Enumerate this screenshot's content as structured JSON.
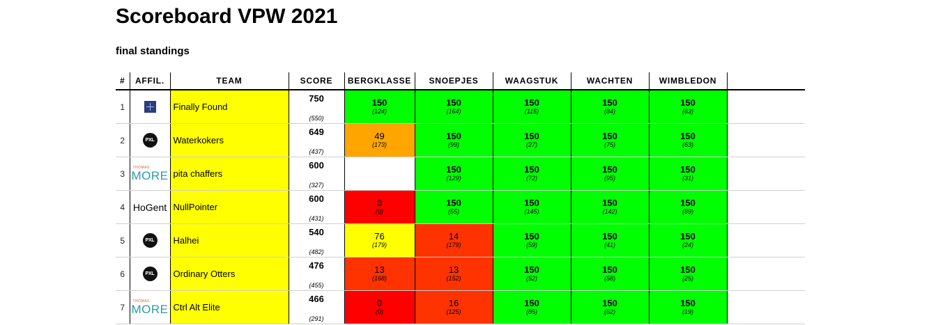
{
  "page": {
    "title": "Scoreboard VPW 2021",
    "subtitle": "final standings"
  },
  "columns": {
    "rank": "#",
    "affil": "AFFIL.",
    "team": "TEAM",
    "score": "SCORE",
    "problems": [
      "BERGKLASSE",
      "SNOEPJES",
      "WAAGSTUK",
      "WACHTEN",
      "WIMBLEDON"
    ]
  },
  "colors": {
    "team_bg": "#ffff00",
    "solved": "#00ff00",
    "partial_orange": "#ffa500",
    "partial_yellow": "#ffff00",
    "low_red_orange": "#ff3300",
    "zero_red": "#ff0000",
    "unattempted": "#ffffff"
  },
  "rows": [
    {
      "rank": "1",
      "logo": "cube-icon",
      "affil_text": "",
      "team": "Finally Found",
      "score": "750",
      "time": "(550)",
      "problems": [
        {
          "points": "150",
          "time": "(124)",
          "color": "#00ff00"
        },
        {
          "points": "150",
          "time": "(164)",
          "color": "#00ff00"
        },
        {
          "points": "150",
          "time": "(115)",
          "color": "#00ff00"
        },
        {
          "points": "150",
          "time": "(84)",
          "color": "#00ff00"
        },
        {
          "points": "150",
          "time": "(63)",
          "color": "#00ff00"
        }
      ]
    },
    {
      "rank": "2",
      "logo": "pxl-logo",
      "affil_text": "PXL",
      "team": "Waterkokers",
      "score": "649",
      "time": "(437)",
      "problems": [
        {
          "points": "49",
          "time": "(173)",
          "color": "#ffa500"
        },
        {
          "points": "150",
          "time": "(99)",
          "color": "#00ff00"
        },
        {
          "points": "150",
          "time": "(27)",
          "color": "#00ff00"
        },
        {
          "points": "150",
          "time": "(75)",
          "color": "#00ff00"
        },
        {
          "points": "150",
          "time": "(63)",
          "color": "#00ff00"
        }
      ]
    },
    {
      "rank": "3",
      "logo": "thomas-more-logo",
      "affil_text": "MORE",
      "affil_small": "THOMAS",
      "team": "pita chaffers",
      "score": "600",
      "time": "(327)",
      "problems": [
        {
          "points": "",
          "time": "",
          "color": "#ffffff"
        },
        {
          "points": "150",
          "time": "(129)",
          "color": "#00ff00"
        },
        {
          "points": "150",
          "time": "(72)",
          "color": "#00ff00"
        },
        {
          "points": "150",
          "time": "(95)",
          "color": "#00ff00"
        },
        {
          "points": "150",
          "time": "(31)",
          "color": "#00ff00"
        }
      ]
    },
    {
      "rank": "4",
      "logo": "hogent-logo",
      "affil_text": "HoGent",
      "team": "NullPointer",
      "score": "600",
      "time": "(431)",
      "problems": [
        {
          "points": "0",
          "time": "(0)",
          "color": "#ff0000"
        },
        {
          "points": "150",
          "time": "(55)",
          "color": "#00ff00"
        },
        {
          "points": "150",
          "time": "(145)",
          "color": "#00ff00"
        },
        {
          "points": "150",
          "time": "(142)",
          "color": "#00ff00"
        },
        {
          "points": "150",
          "time": "(89)",
          "color": "#00ff00"
        }
      ]
    },
    {
      "rank": "5",
      "logo": "pxl-logo",
      "affil_text": "PXL",
      "team": "Halhei",
      "score": "540",
      "time": "(482)",
      "problems": [
        {
          "points": "76",
          "time": "(179)",
          "color": "#ffff00"
        },
        {
          "points": "14",
          "time": "(179)",
          "color": "#ff3300"
        },
        {
          "points": "150",
          "time": "(59)",
          "color": "#00ff00"
        },
        {
          "points": "150",
          "time": "(41)",
          "color": "#00ff00"
        },
        {
          "points": "150",
          "time": "(24)",
          "color": "#00ff00"
        }
      ]
    },
    {
      "rank": "6",
      "logo": "pxl-logo",
      "affil_text": "PXL",
      "team": "Ordinary Otters",
      "score": "476",
      "time": "(455)",
      "problems": [
        {
          "points": "13",
          "time": "(168)",
          "color": "#ff3300"
        },
        {
          "points": "13",
          "time": "(152)",
          "color": "#ff3300"
        },
        {
          "points": "150",
          "time": "(52)",
          "color": "#00ff00"
        },
        {
          "points": "150",
          "time": "(58)",
          "color": "#00ff00"
        },
        {
          "points": "150",
          "time": "(25)",
          "color": "#00ff00"
        }
      ]
    },
    {
      "rank": "7",
      "logo": "thomas-more-logo",
      "affil_text": "MORE",
      "affil_small": "THOMAS",
      "team": "Ctrl Alt Elite",
      "score": "466",
      "time": "(291)",
      "problems": [
        {
          "points": "0",
          "time": "(0)",
          "color": "#ff0000"
        },
        {
          "points": "16",
          "time": "(125)",
          "color": "#ff3300"
        },
        {
          "points": "150",
          "time": "(85)",
          "color": "#00ff00"
        },
        {
          "points": "150",
          "time": "(62)",
          "color": "#00ff00"
        },
        {
          "points": "150",
          "time": "(19)",
          "color": "#00ff00"
        }
      ]
    }
  ]
}
